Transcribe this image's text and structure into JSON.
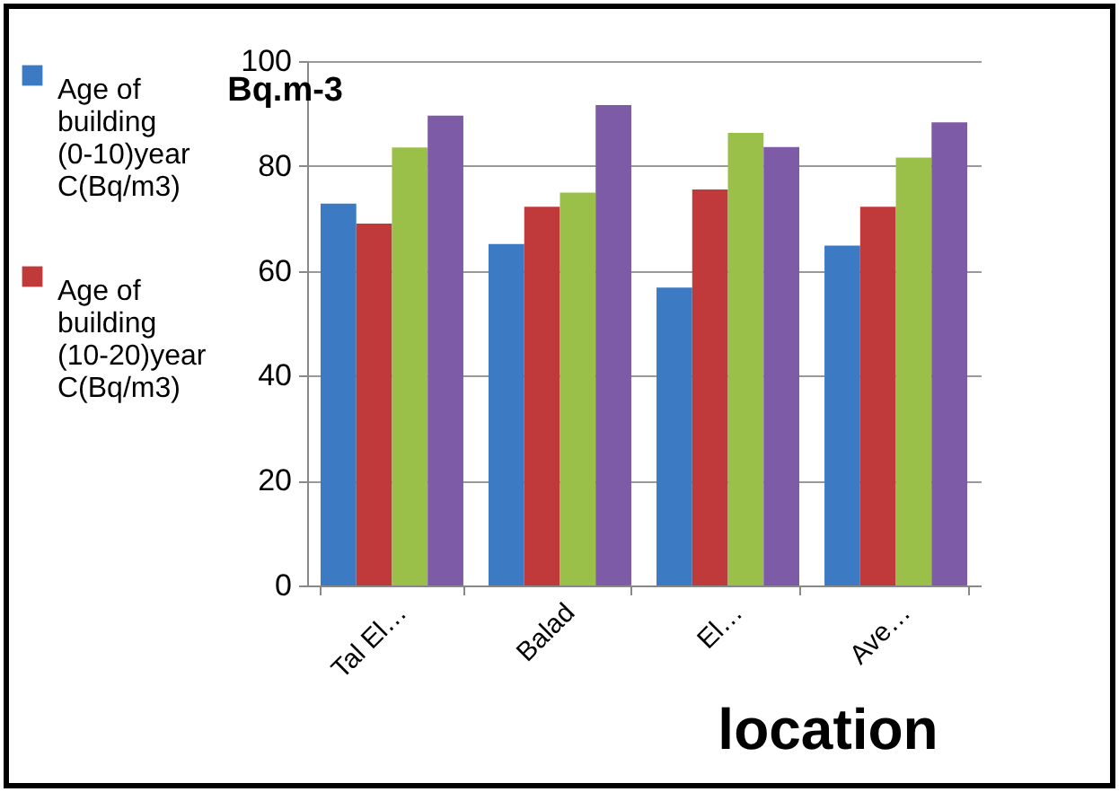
{
  "chart_data": {
    "type": "bar",
    "xlabel": "location",
    "ylabel": "Bq.m-3",
    "categories": [
      "Tal El…",
      "Balad",
      "El…",
      "Ave…"
    ],
    "series": [
      {
        "name": "Age of building (0-10)year C(Bq/m3)",
        "color": "#3c7bc4",
        "values": [
          72.8,
          65.1,
          56.8,
          64.8
        ]
      },
      {
        "name": "Age of building (10-20)year C(Bq/m3)",
        "color": "#c0393b",
        "values": [
          69,
          72.2,
          75.5,
          72.2
        ]
      },
      {
        "color": "#9bc04a",
        "values": [
          83.5,
          74.9,
          86.3,
          81.6
        ]
      },
      {
        "color": "#7e5ba6",
        "values": [
          89.6,
          91.6,
          83.6,
          88.3
        ]
      }
    ],
    "ylim": [
      0,
      100
    ],
    "yticks": [
      0,
      20,
      40,
      60,
      80,
      100
    ],
    "grid": "y",
    "legend": "left"
  }
}
